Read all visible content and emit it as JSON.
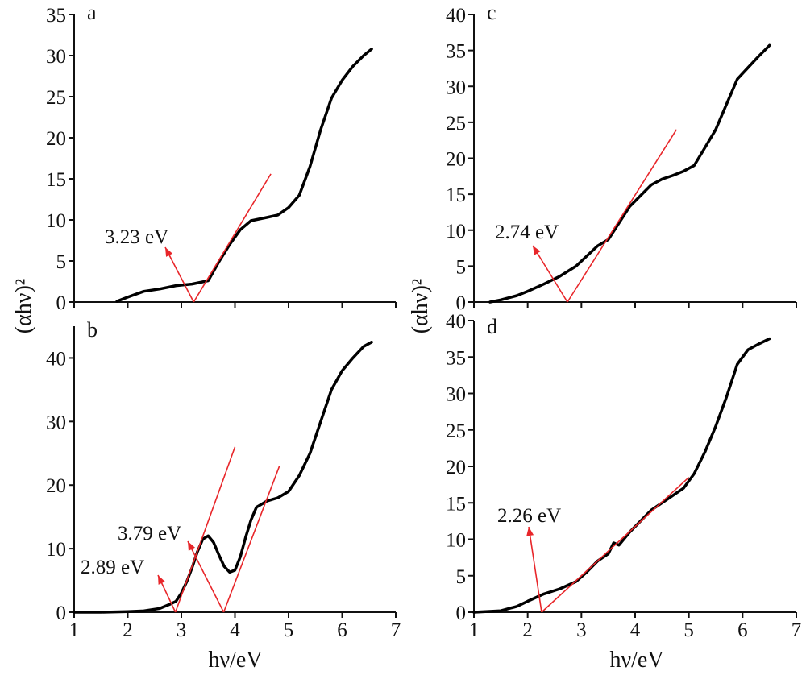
{
  "chart_data": [
    {
      "panel": "a",
      "type": "line",
      "xlim": [
        1,
        7
      ],
      "ylim": [
        0,
        35
      ],
      "yticks": [
        0,
        5,
        10,
        15,
        20,
        25,
        30,
        35
      ],
      "xticks": [],
      "x": [
        1.8,
        2.0,
        2.3,
        2.6,
        2.9,
        3.2,
        3.5,
        3.7,
        3.9,
        4.1,
        4.3,
        4.6,
        4.8,
        5.0,
        5.2,
        5.4,
        5.6,
        5.8,
        6.0,
        6.2,
        6.4,
        6.55
      ],
      "y": [
        0.1,
        0.6,
        1.3,
        1.6,
        2.0,
        2.2,
        2.6,
        4.9,
        7.0,
        8.8,
        9.9,
        10.3,
        10.6,
        11.5,
        13.0,
        16.5,
        21.0,
        24.8,
        27.0,
        28.7,
        30.0,
        30.8
      ],
      "fits": [
        {
          "x": [
            3.23,
            4.67
          ],
          "y": [
            0,
            15.6
          ]
        }
      ],
      "annotations": [
        {
          "text": "3.23 eV",
          "value": 3.23
        }
      ]
    },
    {
      "panel": "b",
      "type": "line",
      "xlim": [
        1,
        7
      ],
      "ylim": [
        0,
        45
      ],
      "yticks": [
        0,
        10,
        20,
        30,
        40
      ],
      "xticks": [
        1,
        2,
        3,
        4,
        5,
        6,
        7
      ],
      "x": [
        1.0,
        1.5,
        2.0,
        2.3,
        2.6,
        2.8,
        2.9,
        3.0,
        3.1,
        3.2,
        3.3,
        3.4,
        3.5,
        3.6,
        3.7,
        3.8,
        3.9,
        4.0,
        4.1,
        4.2,
        4.3,
        4.4,
        4.6,
        4.8,
        5.0,
        5.2,
        5.4,
        5.6,
        5.8,
        6.0,
        6.2,
        6.4,
        6.55
      ],
      "y": [
        0,
        0,
        0.1,
        0.2,
        0.6,
        1.3,
        1.7,
        3.0,
        4.8,
        7.0,
        9.5,
        11.5,
        12.0,
        11.0,
        9.0,
        7.2,
        6.3,
        6.6,
        8.7,
        11.8,
        14.5,
        16.5,
        17.5,
        18.0,
        19.0,
        21.5,
        25.0,
        30.0,
        35.0,
        38.0,
        40.0,
        41.8,
        42.5
      ],
      "fits": [
        {
          "x": [
            2.89,
            4.0
          ],
          "y": [
            0,
            26
          ]
        },
        {
          "x": [
            3.79,
            4.83
          ],
          "y": [
            0,
            23
          ]
        }
      ],
      "annotations": [
        {
          "text": "3.79 eV",
          "value": 3.79
        },
        {
          "text": "2.89 eV",
          "value": 2.89
        }
      ]
    },
    {
      "panel": "c",
      "type": "line",
      "xlim": [
        1,
        7
      ],
      "ylim": [
        0,
        40
      ],
      "yticks": [
        0,
        5,
        10,
        15,
        20,
        25,
        30,
        35,
        40
      ],
      "xticks": [],
      "x": [
        1.3,
        1.5,
        1.8,
        2.0,
        2.3,
        2.6,
        2.9,
        3.1,
        3.3,
        3.5,
        3.7,
        3.9,
        4.1,
        4.3,
        4.5,
        4.7,
        4.9,
        5.1,
        5.3,
        5.5,
        5.7,
        5.9,
        6.1,
        6.3,
        6.5
      ],
      "y": [
        0,
        0.3,
        0.9,
        1.5,
        2.5,
        3.6,
        5.0,
        6.4,
        7.8,
        8.7,
        11.0,
        13.3,
        14.8,
        16.3,
        17.1,
        17.6,
        18.2,
        19.0,
        21.5,
        24.0,
        27.5,
        31.0,
        32.6,
        34.2,
        35.7
      ],
      "fits": [
        {
          "x": [
            2.74,
            4.77
          ],
          "y": [
            0,
            24
          ]
        }
      ],
      "annotations": [
        {
          "text": "2.74 eV",
          "value": 2.74
        }
      ]
    },
    {
      "panel": "d",
      "type": "line",
      "xlim": [
        1,
        7
      ],
      "ylim": [
        0,
        40
      ],
      "yticks": [
        0,
        5,
        10,
        15,
        20,
        25,
        30,
        35,
        40
      ],
      "xticks": [
        1,
        2,
        3,
        4,
        5,
        6,
        7
      ],
      "x": [
        1.0,
        1.5,
        1.8,
        2.0,
        2.3,
        2.6,
        2.9,
        3.1,
        3.3,
        3.5,
        3.6,
        3.7,
        3.9,
        4.1,
        4.3,
        4.5,
        4.7,
        4.9,
        5.1,
        5.3,
        5.5,
        5.7,
        5.9,
        6.1,
        6.3,
        6.5
      ],
      "y": [
        0,
        0.2,
        0.8,
        1.5,
        2.5,
        3.2,
        4.2,
        5.5,
        7.0,
        8.0,
        9.5,
        9.2,
        11.0,
        12.5,
        14.0,
        15.0,
        16.0,
        17.0,
        19.0,
        22.0,
        25.5,
        29.5,
        34.0,
        36.0,
        36.8,
        37.5
      ],
      "fits": [
        {
          "x": [
            2.26,
            5.0
          ],
          "y": [
            0,
            18.5
          ]
        }
      ],
      "annotations": [
        {
          "text": "2.26 eV",
          "value": 2.26
        }
      ]
    }
  ],
  "labels": {
    "ylabel_left": "(αhν)²",
    "ylabel_right": "(αhν)²",
    "xlabel_left": "hν/eV",
    "xlabel_right": "hν/eV"
  }
}
